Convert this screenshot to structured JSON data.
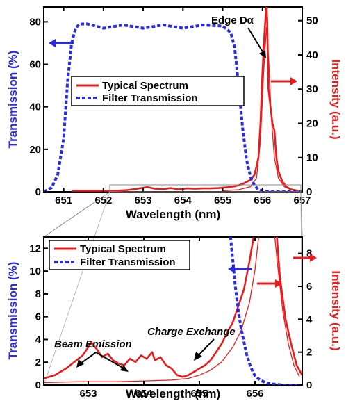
{
  "colors": {
    "transmission": "#2a2ae6",
    "intensity": "#e81c1c",
    "axis": "#000000",
    "zoom_lines": "#888888"
  },
  "chart_data": [
    {
      "type": "line",
      "xlabel": "Wavelength (nm)",
      "ylabel_left": "Transmission (%)",
      "ylabel_right": "Intensity (a.u.)",
      "xlim": [
        650.5,
        657.0
      ],
      "ylim_left": [
        0,
        87
      ],
      "ylim_right": [
        0,
        54
      ],
      "x_ticks": [
        651,
        652,
        653,
        654,
        655,
        656,
        657
      ],
      "y_ticks_left": [
        0,
        20,
        40,
        60,
        80
      ],
      "y_ticks_right": [
        0,
        10,
        20,
        30,
        40,
        50
      ],
      "legend_position": "middle-left",
      "grid": false,
      "series": [
        {
          "name": "Typical Spectrum",
          "axis": "right",
          "style": "solid",
          "x": [
            651.2,
            651.6,
            652.0,
            652.3,
            652.6,
            652.8,
            653.0,
            653.1,
            653.3,
            653.5,
            653.7,
            653.9,
            654.1,
            654.3,
            654.5,
            654.7,
            654.9,
            655.1,
            655.3,
            655.5,
            655.7,
            655.8,
            655.9,
            655.95,
            656.0,
            656.05,
            656.1,
            656.12,
            656.15,
            656.2,
            656.25,
            656.3,
            656.35,
            656.4,
            656.5,
            656.6,
            656.7,
            656.8,
            656.9
          ],
          "y": [
            0.3,
            0.3,
            0.3,
            0.3,
            0.5,
            0.8,
            1.2,
            1.4,
            0.9,
            0.8,
            1.1,
            0.7,
            1.0,
            0.9,
            1.0,
            1.0,
            1.1,
            1.3,
            1.6,
            2.3,
            3.5,
            5.0,
            10.0,
            20.0,
            35.0,
            46.0,
            55.0,
            50.0,
            30.0,
            25.0,
            20.0,
            18.0,
            10.0,
            6.0,
            3.0,
            1.5,
            0.8,
            0.5,
            0.3
          ]
        },
        {
          "name": "Typical Spectrum (thin trace)",
          "axis": "right",
          "style": "solid-thin",
          "x": [
            655.0,
            655.4,
            655.7,
            655.85,
            655.95,
            656.03,
            656.1,
            656.16,
            656.22,
            656.3,
            656.4,
            656.55,
            656.7,
            656.85
          ],
          "y": [
            0.3,
            0.6,
            1.5,
            4.0,
            15.0,
            35.0,
            48.0,
            38.0,
            22.0,
            10.0,
            4.0,
            1.5,
            0.7,
            0.3
          ]
        },
        {
          "name": "Filter Transmission",
          "axis": "left",
          "style": "dashed",
          "x": [
            650.5,
            650.7,
            650.85,
            651.0,
            651.1,
            651.2,
            651.3,
            651.4,
            651.6,
            652.0,
            652.5,
            653.0,
            653.5,
            654.0,
            654.5,
            655.0,
            655.2,
            655.3,
            655.4,
            655.5,
            655.6,
            655.7,
            655.8,
            655.9,
            656.0,
            656.2,
            656.5,
            657.0
          ],
          "y": [
            0,
            2,
            8,
            25,
            52,
            70,
            77,
            79,
            79,
            77,
            78.5,
            77,
            78.5,
            77,
            78.5,
            78,
            75,
            68,
            50,
            30,
            15,
            7,
            3,
            1,
            0.5,
            0,
            0,
            0
          ]
        }
      ],
      "annotations": [
        {
          "text": "Edge Dα"
        }
      ]
    },
    {
      "type": "line",
      "xlabel": "Wavelength (nm)",
      "ylabel_left": "Transmission (%)",
      "ylabel_right": "Intensity (a.u.)",
      "xlim": [
        652.2,
        656.85
      ],
      "ylim_left": [
        0,
        13
      ],
      "ylim_right": [
        0,
        9
      ],
      "x_ticks": [
        653,
        654,
        655,
        656
      ],
      "y_ticks_left": [
        0,
        2,
        4,
        6,
        8,
        10,
        12
      ],
      "y_ticks_right": [
        0,
        2,
        4,
        6,
        8
      ],
      "legend_position": "top-left",
      "grid": false,
      "series": [
        {
          "name": "Typical Spectrum",
          "axis": "right",
          "style": "solid",
          "x": [
            652.2,
            652.4,
            652.6,
            652.75,
            652.9,
            653.0,
            653.05,
            653.15,
            653.25,
            653.35,
            653.45,
            653.55,
            653.65,
            653.75,
            653.85,
            653.95,
            654.05,
            654.15,
            654.2,
            654.3,
            654.4,
            654.5,
            654.6,
            654.7,
            654.8,
            654.9,
            655.0,
            655.1,
            655.2,
            655.3,
            655.4,
            655.5,
            655.6,
            655.7,
            655.8,
            655.9,
            656.0,
            656.05,
            656.35,
            656.45,
            656.55,
            656.65,
            656.75,
            656.85
          ],
          "y": [
            0.4,
            0.6,
            1.0,
            1.4,
            1.8,
            2.3,
            2.6,
            2.2,
            1.7,
            1.9,
            1.5,
            1.3,
            1.2,
            1.6,
            1.4,
            1.8,
            1.6,
            2.0,
            1.5,
            1.7,
            1.2,
            1.0,
            0.6,
            0.5,
            0.6,
            0.8,
            1.0,
            1.2,
            1.5,
            2.0,
            2.5,
            3.2,
            3.8,
            4.8,
            5.8,
            7.5,
            9.5,
            11.0,
            11.0,
            6.5,
            4.0,
            2.5,
            1.2,
            0.6
          ]
        },
        {
          "name": "Typical Spectrum (thin trace)",
          "axis": "right",
          "style": "solid-thin",
          "x": [
            652.2,
            652.8,
            653.5,
            654.0,
            654.5,
            654.8,
            655.0,
            655.2,
            655.4,
            655.6,
            655.75,
            655.9,
            656.0,
            656.1,
            656.2,
            656.3,
            656.4,
            656.5,
            656.6,
            656.7,
            656.8
          ],
          "y": [
            0.15,
            0.2,
            0.2,
            0.25,
            0.3,
            0.4,
            0.6,
            0.9,
            1.4,
            2.3,
            3.3,
            5.0,
            7.0,
            10.0,
            12.0,
            11.0,
            7.5,
            4.5,
            2.5,
            1.2,
            0.5
          ]
        },
        {
          "name": "Filter Transmission",
          "axis": "left",
          "style": "dashed",
          "x": [
            655.55,
            655.6,
            655.65,
            655.7,
            655.75,
            655.8,
            655.85,
            655.9,
            655.95,
            656.0,
            656.1,
            656.2,
            656.3,
            656.5,
            656.85
          ],
          "y": [
            13.5,
            11.0,
            8.5,
            6.5,
            5.0,
            3.8,
            2.7,
            1.9,
            1.3,
            0.8,
            0.4,
            0.2,
            0.1,
            0.0,
            0.0
          ]
        }
      ],
      "annotations": [
        {
          "text": "Charge Exchange"
        },
        {
          "text": "Beam Emission"
        }
      ]
    }
  ]
}
